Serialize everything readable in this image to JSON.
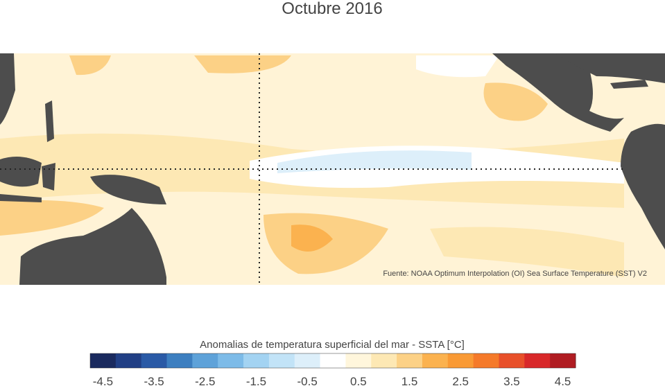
{
  "title": "Octubre 2016",
  "source": "Fuente: NOAA Optimum Interpolation (OI) Sea Surface Temperature (SST) V2",
  "colorbar": {
    "label": "Anomalias de temperatura superficial del mar - SSTA  [°C]",
    "lim": [
      -4.75,
      4.75
    ],
    "ticks": [
      -4.5,
      -3.5,
      -2.5,
      -1.5,
      -0.5,
      0.5,
      1.5,
      2.5,
      3.5,
      4.5
    ],
    "colors": [
      "#1a2a5e",
      "#213f85",
      "#2a5aa6",
      "#3d7fc0",
      "#5ea2d9",
      "#7dbbe8",
      "#a3d3f2",
      "#c2e3f7",
      "#ddeffa",
      "#ffffff",
      "#fff6dc",
      "#fde8b4",
      "#fcd186",
      "#fbb24f",
      "#f99a35",
      "#f57a2a",
      "#e8502a",
      "#d8282a",
      "#b01c22"
    ]
  }
}
